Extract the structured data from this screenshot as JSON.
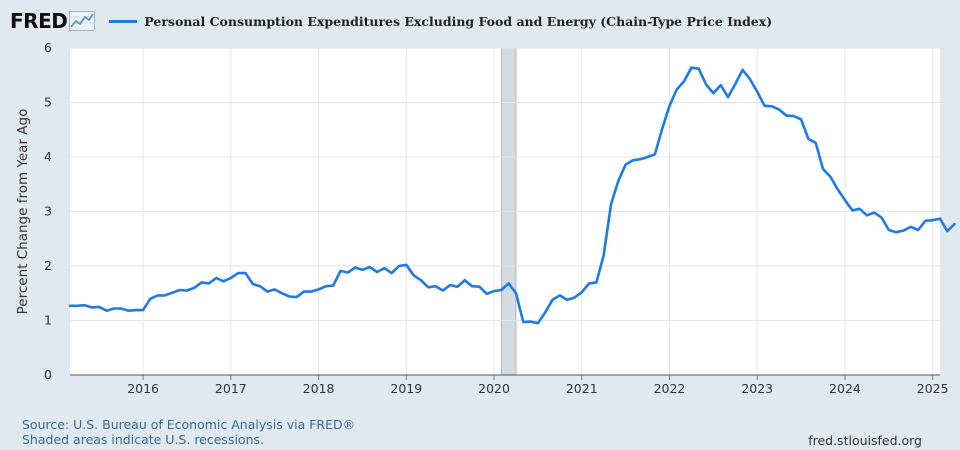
{
  "header": {
    "logo_text": "FRED",
    "series_title": "Personal Consumption Expenditures Excluding Food and Energy (Chain-Type Price Index)",
    "series_color": "#1e7ae6"
  },
  "footer": {
    "source": "Source: U.S. Bureau of Economic Analysis via FRED®",
    "recessions_note": "Shaded areas indicate U.S. recessions.",
    "site": "fred.stlouisfed.org"
  },
  "chart_data": {
    "type": "line",
    "title": "Personal Consumption Expenditures Excluding Food and Energy (Chain-Type Price Index)",
    "ylabel": "Percent Change from Year Ago",
    "xlabel": "",
    "ylim": [
      0,
      6
    ],
    "yticks": [
      "0",
      "1",
      "2",
      "3",
      "4",
      "5",
      "6"
    ],
    "xticks": [
      "2016",
      "2017",
      "2018",
      "2019",
      "2020",
      "2021",
      "2022",
      "2023",
      "2024",
      "2025"
    ],
    "xlim": [
      "2015-03",
      "2025-02"
    ],
    "grid": true,
    "recession_shading": [
      {
        "start": "2020-02",
        "end": "2020-04"
      }
    ],
    "series": [
      {
        "name": "Personal Consumption Expenditures Excluding Food and Energy (Chain-Type Price Index)",
        "color": "#1e7ae6",
        "points": [
          [
            "2015-03",
            1.27
          ],
          [
            "2015-04",
            1.27
          ],
          [
            "2015-05",
            1.28
          ],
          [
            "2015-06",
            1.24
          ],
          [
            "2015-07",
            1.25
          ],
          [
            "2015-08",
            1.18
          ],
          [
            "2015-09",
            1.22
          ],
          [
            "2015-10",
            1.22
          ],
          [
            "2015-11",
            1.18
          ],
          [
            "2015-12",
            1.19
          ],
          [
            "2016-01",
            1.19
          ],
          [
            "2016-02",
            1.4
          ],
          [
            "2016-03",
            1.46
          ],
          [
            "2016-04",
            1.46
          ],
          [
            "2016-05",
            1.51
          ],
          [
            "2016-06",
            1.56
          ],
          [
            "2016-07",
            1.55
          ],
          [
            "2016-08",
            1.6
          ],
          [
            "2016-09",
            1.7
          ],
          [
            "2016-10",
            1.68
          ],
          [
            "2016-11",
            1.78
          ],
          [
            "2016-12",
            1.72
          ],
          [
            "2017-01",
            1.78
          ],
          [
            "2017-02",
            1.87
          ],
          [
            "2017-03",
            1.87
          ],
          [
            "2017-04",
            1.67
          ],
          [
            "2017-05",
            1.63
          ],
          [
            "2017-06",
            1.53
          ],
          [
            "2017-07",
            1.57
          ],
          [
            "2017-08",
            1.5
          ],
          [
            "2017-09",
            1.44
          ],
          [
            "2017-10",
            1.43
          ],
          [
            "2017-11",
            1.53
          ],
          [
            "2017-12",
            1.53
          ],
          [
            "2018-01",
            1.57
          ],
          [
            "2018-02",
            1.63
          ],
          [
            "2018-03",
            1.64
          ],
          [
            "2018-04",
            1.91
          ],
          [
            "2018-05",
            1.88
          ],
          [
            "2018-06",
            1.97
          ],
          [
            "2018-07",
            1.93
          ],
          [
            "2018-08",
            1.98
          ],
          [
            "2018-09",
            1.89
          ],
          [
            "2018-10",
            1.96
          ],
          [
            "2018-11",
            1.87
          ],
          [
            "2018-12",
            2.0
          ],
          [
            "2019-01",
            2.02
          ],
          [
            "2019-02",
            1.83
          ],
          [
            "2019-03",
            1.74
          ],
          [
            "2019-04",
            1.61
          ],
          [
            "2019-05",
            1.63
          ],
          [
            "2019-06",
            1.55
          ],
          [
            "2019-07",
            1.65
          ],
          [
            "2019-08",
            1.62
          ],
          [
            "2019-09",
            1.74
          ],
          [
            "2019-10",
            1.63
          ],
          [
            "2019-11",
            1.62
          ],
          [
            "2019-12",
            1.49
          ],
          [
            "2020-01",
            1.54
          ],
          [
            "2020-02",
            1.56
          ],
          [
            "2020-03",
            1.68
          ],
          [
            "2020-04",
            1.5
          ],
          [
            "2020-05",
            0.97
          ],
          [
            "2020-06",
            0.98
          ],
          [
            "2020-07",
            0.95
          ],
          [
            "2020-08",
            1.15
          ],
          [
            "2020-09",
            1.38
          ],
          [
            "2020-10",
            1.46
          ],
          [
            "2020-11",
            1.38
          ],
          [
            "2020-12",
            1.42
          ],
          [
            "2021-01",
            1.52
          ],
          [
            "2021-02",
            1.68
          ],
          [
            "2021-03",
            1.7
          ],
          [
            "2021-04",
            2.2
          ],
          [
            "2021-05",
            3.13
          ],
          [
            "2021-06",
            3.56
          ],
          [
            "2021-07",
            3.86
          ],
          [
            "2021-08",
            3.94
          ],
          [
            "2021-09",
            3.96
          ],
          [
            "2021-10",
            4.0
          ],
          [
            "2021-11",
            4.05
          ],
          [
            "2021-12",
            4.52
          ],
          [
            "2022-01",
            4.94
          ],
          [
            "2022-02",
            5.24
          ],
          [
            "2022-03",
            5.39
          ],
          [
            "2022-04",
            5.64
          ],
          [
            "2022-05",
            5.62
          ],
          [
            "2022-06",
            5.33
          ],
          [
            "2022-07",
            5.17
          ],
          [
            "2022-08",
            5.32
          ],
          [
            "2022-09",
            5.1
          ],
          [
            "2022-10",
            5.34
          ],
          [
            "2022-11",
            5.6
          ],
          [
            "2022-12",
            5.43
          ],
          [
            "2023-01",
            5.2
          ],
          [
            "2023-02",
            4.94
          ],
          [
            "2023-03",
            4.93
          ],
          [
            "2023-04",
            4.87
          ],
          [
            "2023-05",
            4.76
          ],
          [
            "2023-06",
            4.75
          ],
          [
            "2023-07",
            4.69
          ],
          [
            "2023-08",
            4.33
          ],
          [
            "2023-09",
            4.26
          ],
          [
            "2023-10",
            3.78
          ],
          [
            "2023-11",
            3.64
          ],
          [
            "2023-12",
            3.41
          ],
          [
            "2024-01",
            3.21
          ],
          [
            "2024-02",
            3.02
          ],
          [
            "2024-03",
            3.05
          ],
          [
            "2024-04",
            2.93
          ],
          [
            "2024-05",
            2.98
          ],
          [
            "2024-06",
            2.89
          ],
          [
            "2024-07",
            2.66
          ],
          [
            "2024-08",
            2.62
          ],
          [
            "2024-09",
            2.65
          ],
          [
            "2024-10",
            2.72
          ],
          [
            "2024-11",
            2.66
          ],
          [
            "2024-12",
            2.83
          ],
          [
            "2025-01",
            2.84
          ],
          [
            "2025-02",
            2.87
          ],
          [
            "2025-03",
            2.64
          ],
          [
            "2025-04",
            2.77
          ]
        ]
      }
    ]
  }
}
